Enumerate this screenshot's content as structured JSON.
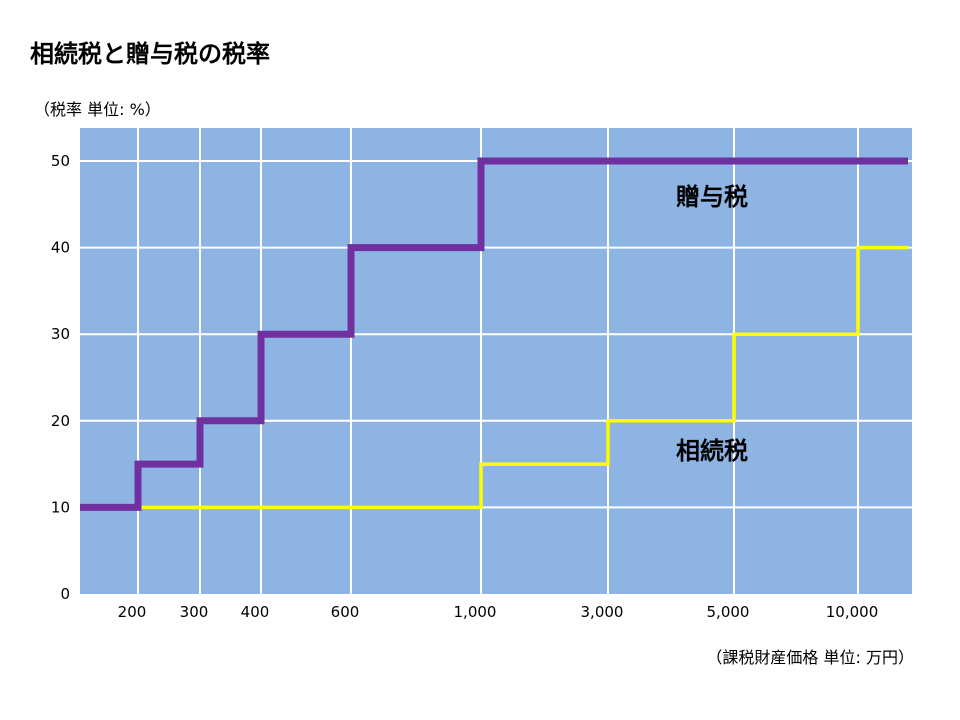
{
  "chart_data": {
    "type": "line",
    "title": "相続税と贈与税の税率",
    "ylabel": "（税率  単位: %）",
    "xlabel": "（課税財産価格  単位: 万円）",
    "ylim": [
      0,
      50
    ],
    "y_ticks": [
      "0",
      "10",
      "20",
      "30",
      "40",
      "50"
    ],
    "x_ticks": [
      "200",
      "300",
      "400",
      "600",
      "1,000",
      "3,000",
      "5,000",
      "10,000"
    ],
    "grid": true,
    "colors": {
      "plot_background": "#8eb4e3",
      "gift": "#7030a0",
      "inheritance": "#ffff00",
      "grid": "#ffffff"
    },
    "series": [
      {
        "name": "贈与税",
        "points": [
          {
            "x": "0",
            "y": 10
          },
          {
            "x": "200",
            "y": 10
          },
          {
            "x": "200",
            "y": 15
          },
          {
            "x": "300",
            "y": 15
          },
          {
            "x": "300",
            "y": 20
          },
          {
            "x": "400",
            "y": 20
          },
          {
            "x": "400",
            "y": 30
          },
          {
            "x": "600",
            "y": 30
          },
          {
            "x": "600",
            "y": 40
          },
          {
            "x": "1,000",
            "y": 40
          },
          {
            "x": "1,000",
            "y": 50
          },
          {
            "x": "end",
            "y": 50
          }
        ]
      },
      {
        "name": "相続税",
        "points": [
          {
            "x": "0",
            "y": 10
          },
          {
            "x": "1,000",
            "y": 10
          },
          {
            "x": "1,000",
            "y": 15
          },
          {
            "x": "3,000",
            "y": 15
          },
          {
            "x": "3,000",
            "y": 20
          },
          {
            "x": "5,000",
            "y": 20
          },
          {
            "x": "5,000",
            "y": 30
          },
          {
            "x": "10,000",
            "y": 30
          },
          {
            "x": "10,000",
            "y": 40
          },
          {
            "x": "end",
            "y": 40
          }
        ]
      }
    ]
  }
}
